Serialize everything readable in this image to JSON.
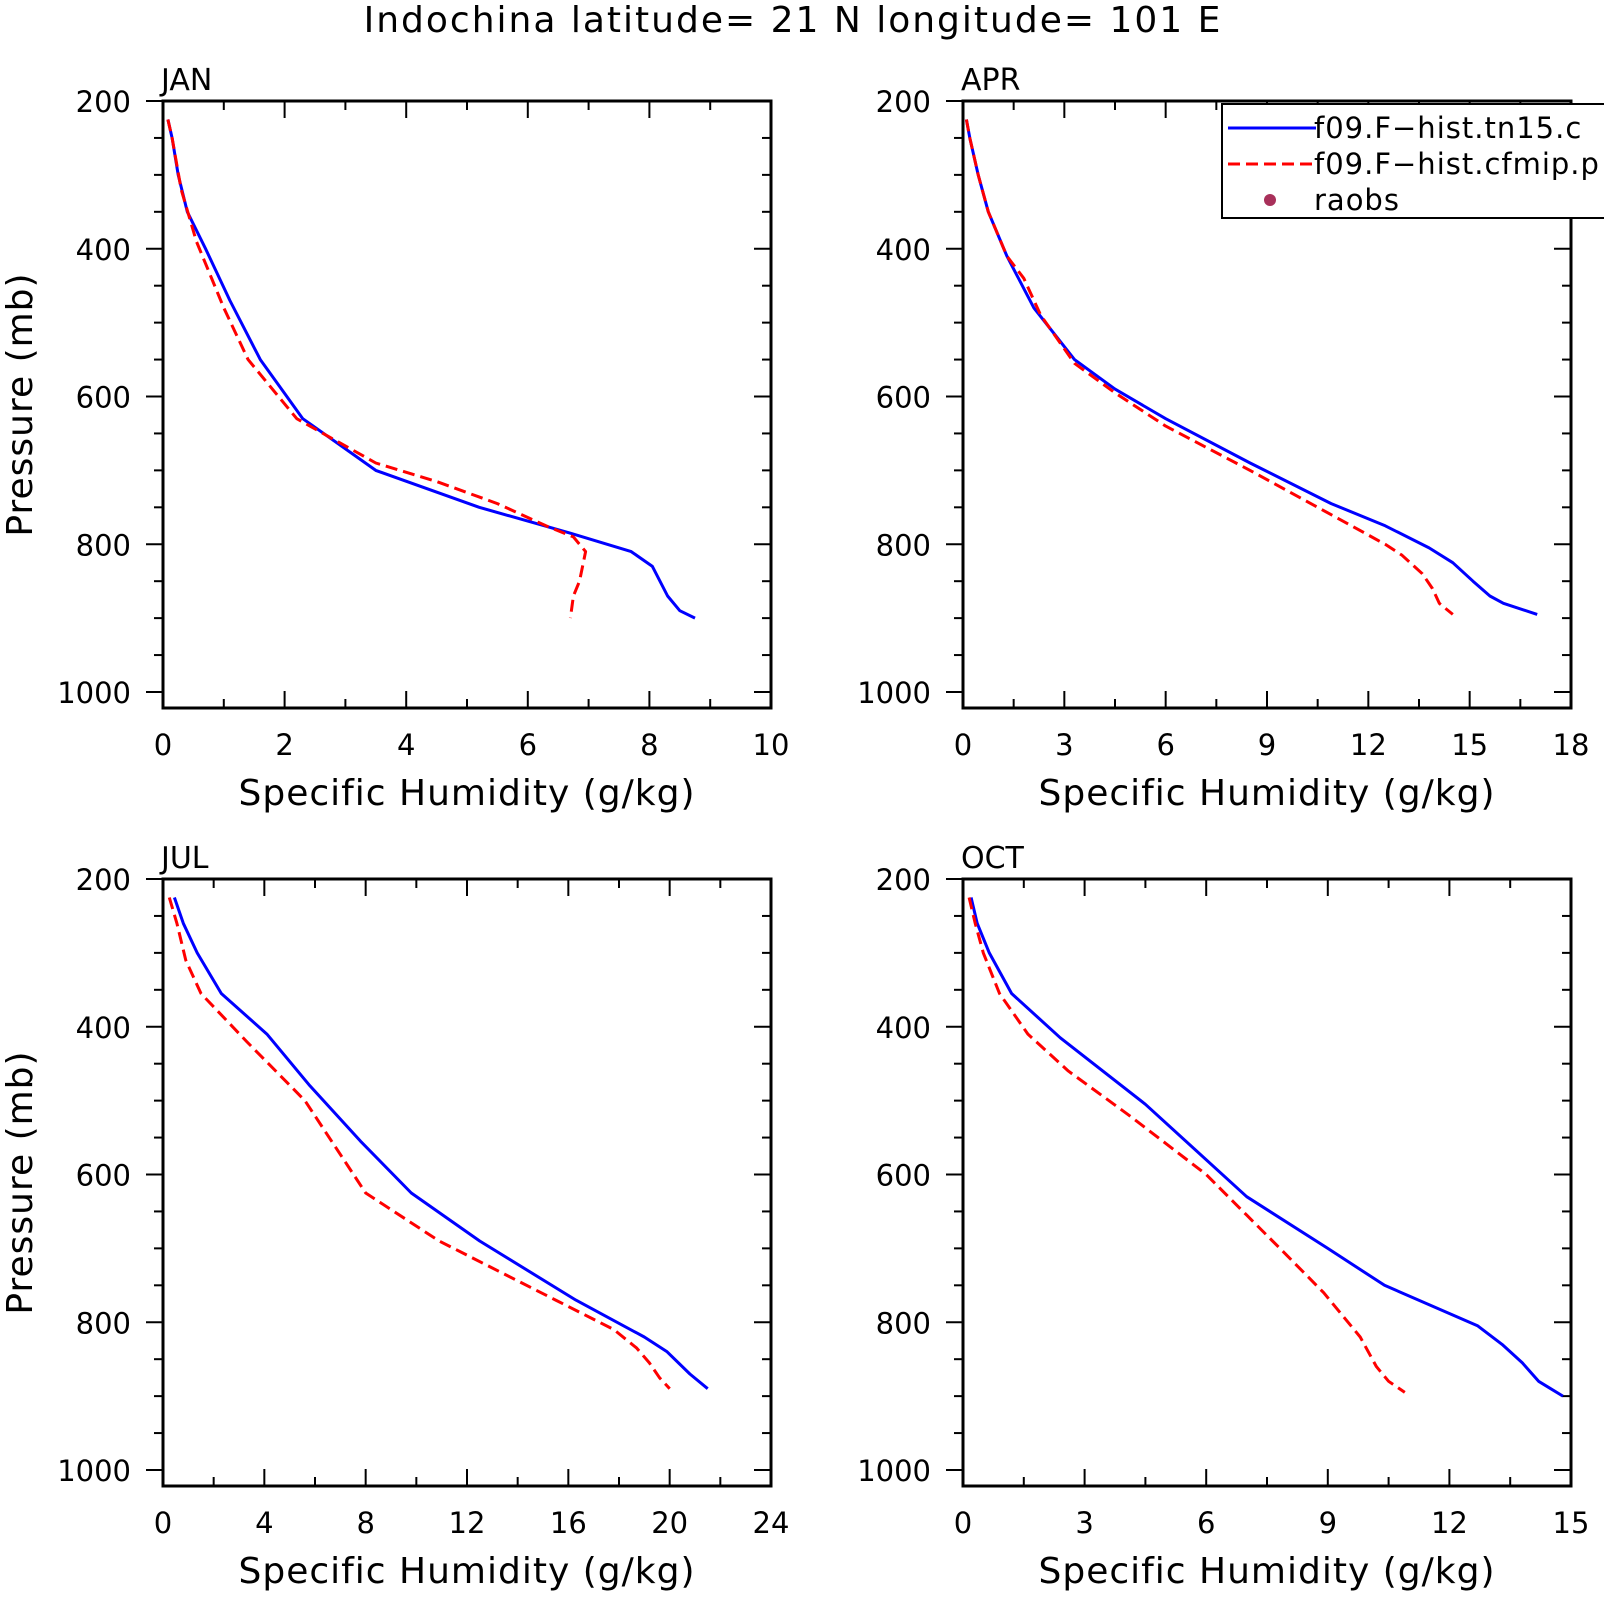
{
  "title": "Indochina  latitude= 21 N longitude= 101 E",
  "legend": {
    "entries": [
      {
        "label": "f09.F−hist.tn15.c",
        "color": "#0000ff",
        "style": "solid"
      },
      {
        "label": "f09.F−hist.cfmip.p",
        "color": "#ff0000",
        "style": "dashed"
      },
      {
        "label": "raobs",
        "color": "#a8305a",
        "style": "marker"
      }
    ]
  },
  "chart_data": [
    {
      "type": "line",
      "panel_label": "JAN",
      "xlabel": "Specific Humidity (g/kg)",
      "ylabel": "Pressure (mb)",
      "xlim": [
        0,
        10
      ],
      "ylim": [
        1000,
        200
      ],
      "yscale": "reversed",
      "xticks": [
        0,
        2,
        4,
        6,
        8,
        10
      ],
      "yticks": [
        200,
        400,
        600,
        800,
        1000
      ],
      "series": [
        {
          "name": "f09.F−hist.tn15.c",
          "color": "#0000ff",
          "dash": "solid",
          "points": [
            [
              0.08,
              225
            ],
            [
              0.15,
              250
            ],
            [
              0.25,
              300
            ],
            [
              0.4,
              350
            ],
            [
              0.7,
              400
            ],
            [
              1.1,
              470
            ],
            [
              1.6,
              550
            ],
            [
              2.3,
              630
            ],
            [
              3.5,
              700
            ],
            [
              5.2,
              750
            ],
            [
              6.7,
              785
            ],
            [
              7.7,
              810
            ],
            [
              8.05,
              830
            ],
            [
              8.3,
              870
            ],
            [
              8.5,
              890
            ],
            [
              8.75,
              900
            ]
          ]
        },
        {
          "name": "f09.F−hist.cfmip.p",
          "color": "#ff0000",
          "dash": "dashed",
          "points": [
            [
              0.08,
              225
            ],
            [
              0.15,
              250
            ],
            [
              0.3,
              320
            ],
            [
              0.55,
              390
            ],
            [
              1.0,
              480
            ],
            [
              1.4,
              550
            ],
            [
              2.2,
              630
            ],
            [
              3.5,
              690
            ],
            [
              4.5,
              715
            ],
            [
              5.5,
              745
            ],
            [
              6.3,
              775
            ],
            [
              6.75,
              790
            ],
            [
              6.95,
              810
            ],
            [
              6.85,
              850
            ],
            [
              6.75,
              870
            ],
            [
              6.7,
              900
            ]
          ]
        }
      ]
    },
    {
      "type": "line",
      "panel_label": "APR",
      "xlabel": "Specific Humidity (g/kg)",
      "ylabel": "",
      "xlim": [
        0,
        18
      ],
      "ylim": [
        1000,
        200
      ],
      "yscale": "reversed",
      "xticks": [
        0,
        3,
        6,
        9,
        12,
        15,
        18
      ],
      "yticks": [
        200,
        400,
        600,
        800,
        1000
      ],
      "series": [
        {
          "name": "f09.F−hist.tn15.c",
          "color": "#0000ff",
          "dash": "solid",
          "points": [
            [
              0.1,
              225
            ],
            [
              0.2,
              250
            ],
            [
              0.45,
              300
            ],
            [
              0.75,
              350
            ],
            [
              1.3,
              410
            ],
            [
              2.1,
              480
            ],
            [
              3.3,
              550
            ],
            [
              4.5,
              590
            ],
            [
              6.0,
              630
            ],
            [
              8.5,
              690
            ],
            [
              10.9,
              745
            ],
            [
              12.5,
              775
            ],
            [
              13.8,
              805
            ],
            [
              14.5,
              825
            ],
            [
              15.1,
              850
            ],
            [
              15.6,
              870
            ],
            [
              16.0,
              880
            ],
            [
              17.0,
              895
            ]
          ]
        },
        {
          "name": "f09.F−hist.cfmip.p",
          "color": "#ff0000",
          "dash": "dashed",
          "points": [
            [
              0.1,
              225
            ],
            [
              0.2,
              250
            ],
            [
              0.45,
              300
            ],
            [
              0.75,
              350
            ],
            [
              1.3,
              410
            ],
            [
              1.8,
              440
            ],
            [
              2.3,
              490
            ],
            [
              3.3,
              555
            ],
            [
              4.5,
              595
            ],
            [
              6.0,
              640
            ],
            [
              8.5,
              700
            ],
            [
              10.9,
              760
            ],
            [
              12.5,
              800
            ],
            [
              13.0,
              815
            ],
            [
              13.6,
              840
            ],
            [
              13.9,
              860
            ],
            [
              14.1,
              880
            ],
            [
              14.5,
              895
            ]
          ]
        }
      ]
    },
    {
      "type": "line",
      "panel_label": "JUL",
      "xlabel": "Specific Humidity (g/kg)",
      "ylabel": "Pressure (mb)",
      "xlim": [
        0,
        24
      ],
      "ylim": [
        1000,
        200
      ],
      "yscale": "reversed",
      "xticks": [
        0,
        4,
        8,
        12,
        16,
        20,
        24
      ],
      "yticks": [
        200,
        400,
        600,
        800,
        1000
      ],
      "series": [
        {
          "name": "f09.F−hist.tn15.c",
          "color": "#0000ff",
          "dash": "solid",
          "points": [
            [
              0.45,
              225
            ],
            [
              0.8,
              260
            ],
            [
              1.35,
              300
            ],
            [
              2.3,
              355
            ],
            [
              4.1,
              410
            ],
            [
              5.8,
              480
            ],
            [
              7.8,
              555
            ],
            [
              9.8,
              625
            ],
            [
              12.5,
              690
            ],
            [
              16.3,
              770
            ],
            [
              19.0,
              820
            ],
            [
              19.9,
              840
            ],
            [
              20.8,
              870
            ],
            [
              21.5,
              890
            ]
          ]
        },
        {
          "name": "f09.F−hist.cfmip.p",
          "color": "#ff0000",
          "dash": "dashed",
          "points": [
            [
              0.25,
              225
            ],
            [
              0.55,
              260
            ],
            [
              0.9,
              310
            ],
            [
              1.5,
              355
            ],
            [
              3.3,
              420
            ],
            [
              5.6,
              500
            ],
            [
              8.0,
              625
            ],
            [
              10.9,
              690
            ],
            [
              15.5,
              770
            ],
            [
              17.8,
              810
            ],
            [
              18.7,
              835
            ],
            [
              19.2,
              855
            ],
            [
              19.6,
              875
            ],
            [
              20.0,
              890
            ]
          ]
        }
      ]
    },
    {
      "type": "line",
      "panel_label": "OCT",
      "xlabel": "Specific Humidity (g/kg)",
      "ylabel": "",
      "xlim": [
        0,
        15
      ],
      "ylim": [
        1000,
        200
      ],
      "yscale": "reversed",
      "xticks": [
        0,
        3,
        6,
        9,
        12,
        15
      ],
      "yticks": [
        200,
        400,
        600,
        800,
        1000
      ],
      "series": [
        {
          "name": "f09.F−hist.tn15.c",
          "color": "#0000ff",
          "dash": "solid",
          "points": [
            [
              0.2,
              225
            ],
            [
              0.35,
              260
            ],
            [
              0.65,
              300
            ],
            [
              1.2,
              355
            ],
            [
              2.4,
              415
            ],
            [
              4.5,
              505
            ],
            [
              7.0,
              630
            ],
            [
              9.0,
              700
            ],
            [
              10.4,
              750
            ],
            [
              12.7,
              805
            ],
            [
              13.3,
              830
            ],
            [
              13.8,
              855
            ],
            [
              14.2,
              880
            ],
            [
              14.5,
              890
            ],
            [
              14.8,
              900
            ]
          ]
        },
        {
          "name": "f09.F−hist.cfmip.p",
          "color": "#ff0000",
          "dash": "dashed",
          "points": [
            [
              0.15,
              225
            ],
            [
              0.3,
              260
            ],
            [
              0.5,
              300
            ],
            [
              0.9,
              355
            ],
            [
              1.6,
              410
            ],
            [
              2.6,
              460
            ],
            [
              4.1,
              520
            ],
            [
              6.0,
              600
            ],
            [
              7.0,
              655
            ],
            [
              8.0,
              710
            ],
            [
              8.9,
              760
            ],
            [
              9.5,
              800
            ],
            [
              9.8,
              820
            ],
            [
              10.2,
              860
            ],
            [
              10.5,
              880
            ],
            [
              10.9,
              895
            ]
          ]
        }
      ]
    }
  ]
}
